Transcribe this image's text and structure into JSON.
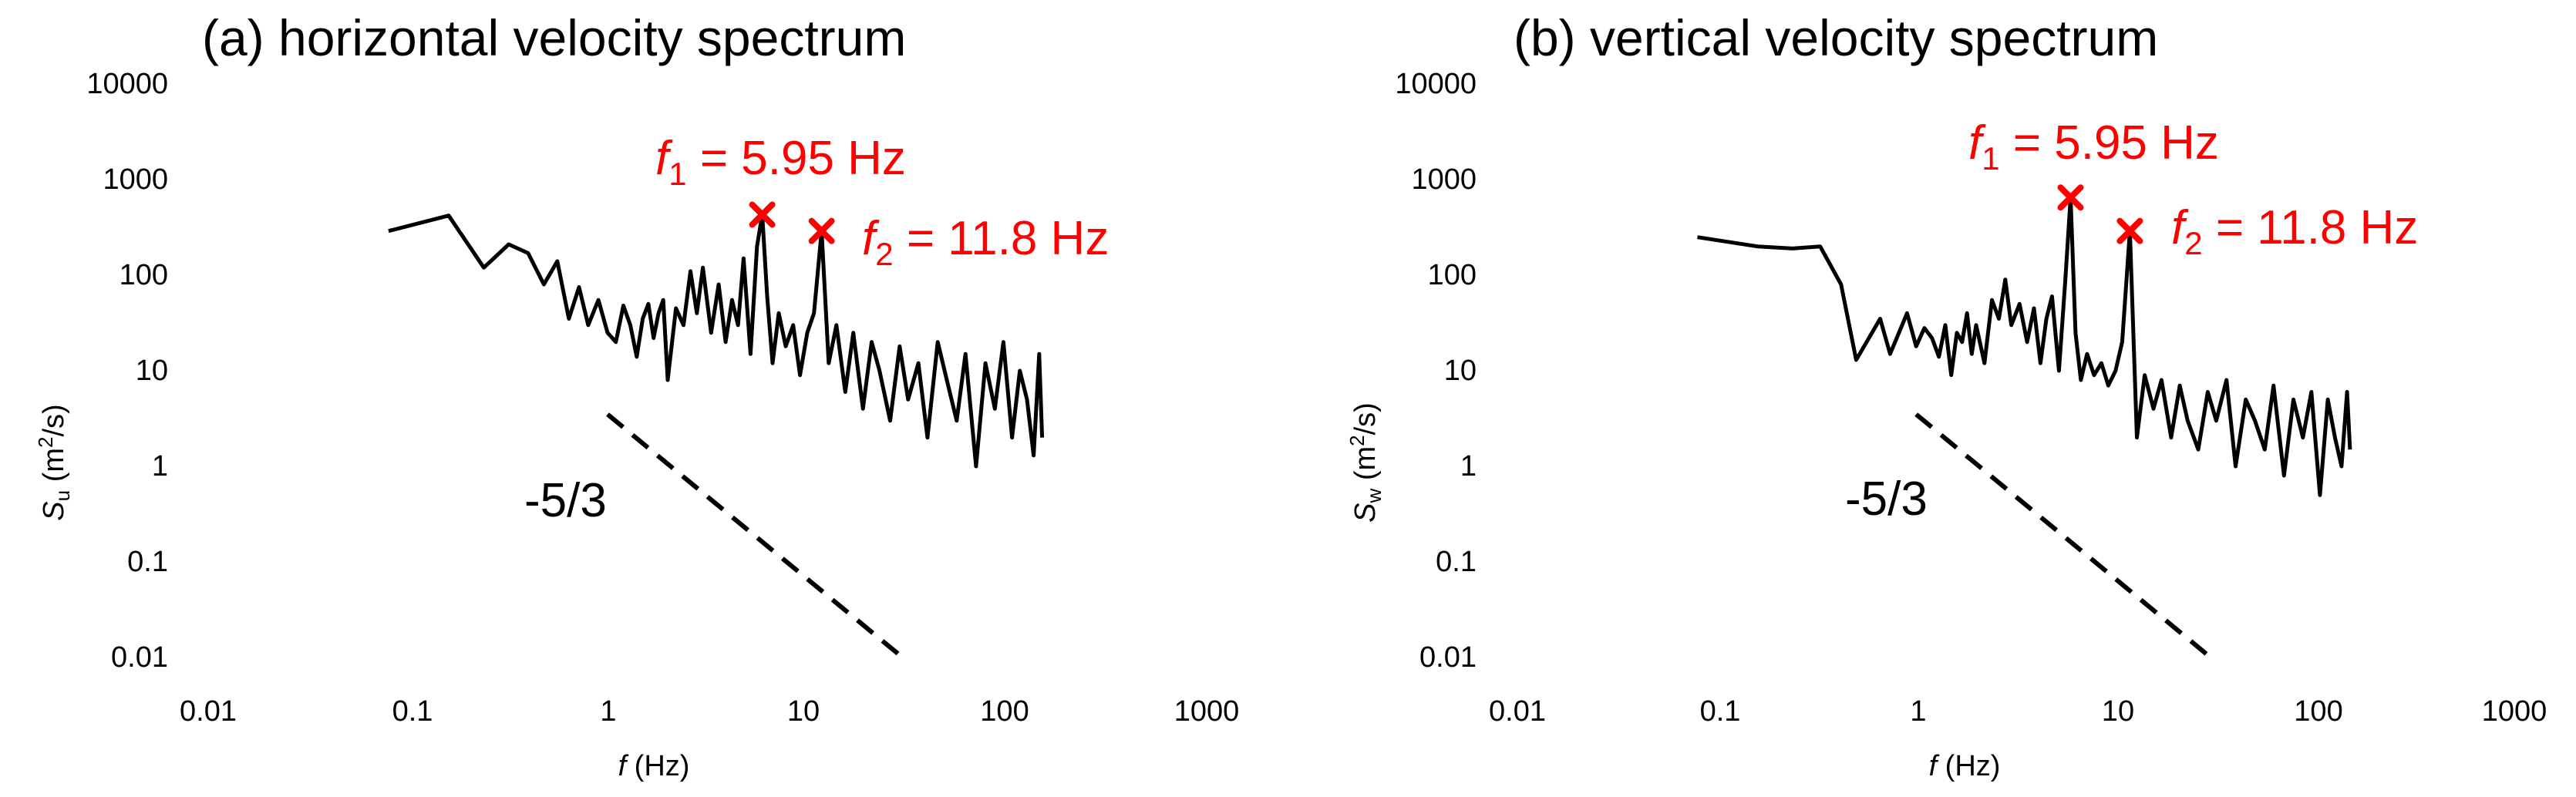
{
  "chart_data": [
    {
      "type": "line",
      "title": "(a) horizontal velocity spectrum",
      "xlabel": "f (Hz)",
      "ylabel": "Su (m2/s)",
      "x_scale": "log",
      "y_scale": "log",
      "xlim": [
        0.01,
        1000
      ],
      "ylim": [
        0.01,
        10000
      ],
      "x_ticks": [
        "0.01",
        "0.1",
        "1",
        "10",
        "100",
        "1000"
      ],
      "y_ticks": [
        "0.01",
        "0.1",
        "1",
        "10",
        "100",
        "1000",
        "10000"
      ],
      "grid": false,
      "colors": {
        "series": "#000000",
        "annotation": "#ff0000"
      },
      "series": [
        {
          "style": "solid",
          "x": [
            0.08,
            0.16,
            0.24,
            0.32,
            0.4,
            0.48,
            0.56,
            0.64,
            0.72,
            0.8,
            0.9,
            1.0,
            1.1,
            1.2,
            1.3,
            1.4,
            1.5,
            1.6,
            1.7,
            1.8,
            1.9,
            2.0,
            2.2,
            2.4,
            2.6,
            2.8,
            3.0,
            3.3,
            3.6,
            3.9,
            4.2,
            4.5,
            4.8,
            5.2,
            5.6,
            5.95,
            6.3,
            6.7,
            7.2,
            7.8,
            8.5,
            9.2,
            10.0,
            10.8,
            11.8,
            12.8,
            14.0,
            15.5,
            17,
            19,
            21,
            23,
            26,
            29,
            32,
            36,
            40,
            45,
            50,
            56,
            62,
            70,
            78,
            87,
            96,
            106,
            116,
            126,
            136,
            145,
            150
          ],
          "y": [
            290,
            420,
            120,
            210,
            170,
            80,
            140,
            35,
            75,
            30,
            55,
            25,
            20,
            48,
            30,
            14,
            35,
            50,
            22,
            40,
            55,
            8,
            45,
            30,
            110,
            40,
            120,
            25,
            80,
            20,
            55,
            30,
            150,
            15,
            200,
            430,
            60,
            12,
            40,
            18,
            30,
            9,
            25,
            40,
            290,
            12,
            30,
            6,
            25,
            4,
            20,
            10,
            3,
            18,
            5,
            12,
            2,
            20,
            8,
            3,
            15,
            1,
            12,
            4,
            20,
            2,
            10,
            5,
            1.3,
            15,
            2
          ]
        },
        {
          "style": "dashed",
          "x": [
            1,
            30
          ],
          "y": [
            3.5,
            0.01
          ]
        }
      ],
      "markers": [
        {
          "x": 5.95,
          "y": 430,
          "symbol": "x"
        },
        {
          "x": 11.8,
          "y": 290,
          "symbol": "x"
        }
      ],
      "annotations": [
        {
          "symbol": "f",
          "subscript": "1",
          "text": " = 5.95 Hz"
        },
        {
          "symbol": "f",
          "subscript": "2",
          "text": " = 11.8 Hz"
        },
        {
          "text": "-5/3"
        }
      ]
    },
    {
      "type": "line",
      "title": "(b) vertical velocity spectrum",
      "xlabel": "f (Hz)",
      "ylabel": "Sw (m2/s)",
      "x_scale": "log",
      "y_scale": "log",
      "xlim": [
        0.01,
        1000
      ],
      "ylim": [
        0.01,
        10000
      ],
      "x_ticks": [
        "0.01",
        "0.1",
        "1",
        "10",
        "100",
        "1000"
      ],
      "y_ticks": [
        "0.01",
        "0.1",
        "1",
        "10",
        "100",
        "1000",
        "10000"
      ],
      "grid": false,
      "colors": {
        "series": "#000000",
        "annotation": "#ff0000"
      },
      "series": [
        {
          "style": "solid",
          "x": [
            0.08,
            0.16,
            0.24,
            0.33,
            0.42,
            0.5,
            0.58,
            0.66,
            0.74,
            0.82,
            0.9,
            1.0,
            1.1,
            1.2,
            1.3,
            1.4,
            1.5,
            1.6,
            1.7,
            1.8,
            1.9,
            2.0,
            2.2,
            2.4,
            2.6,
            2.8,
            3.0,
            3.3,
            3.6,
            3.9,
            4.2,
            4.5,
            4.8,
            5.2,
            5.6,
            5.95,
            6.3,
            6.7,
            7.2,
            7.8,
            8.5,
            9.2,
            10.0,
            10.8,
            11.8,
            12.8,
            14.0,
            15.5,
            17,
            19,
            21,
            23,
            26,
            29,
            32,
            36,
            40,
            45,
            50,
            56,
            62,
            70,
            78,
            87,
            96,
            106,
            116,
            126,
            136,
            145,
            150
          ],
          "y": [
            250,
            200,
            190,
            200,
            80,
            13,
            22,
            35,
            15,
            25,
            40,
            18,
            28,
            22,
            14,
            30,
            9,
            25,
            20,
            40,
            15,
            30,
            12,
            55,
            35,
            90,
            30,
            50,
            20,
            45,
            12,
            35,
            60,
            10,
            90,
            650,
            25,
            8,
            15,
            9,
            12,
            7,
            10,
            20,
            290,
            2,
            9,
            4,
            8,
            2,
            7,
            3,
            1.5,
            6,
            3,
            8,
            1,
            5,
            3,
            1.5,
            7,
            0.8,
            5,
            2,
            6,
            0.5,
            5,
            2,
            1,
            6,
            1.5
          ]
        },
        {
          "style": "dashed",
          "x": [
            1,
            30
          ],
          "y": [
            3.5,
            0.01
          ]
        }
      ],
      "markers": [
        {
          "x": 5.95,
          "y": 650,
          "symbol": "x"
        },
        {
          "x": 11.8,
          "y": 290,
          "symbol": "x"
        }
      ],
      "annotations": [
        {
          "symbol": "f",
          "subscript": "1",
          "text": " = 5.95 Hz"
        },
        {
          "symbol": "f",
          "subscript": "2",
          "text": " = 11.8 Hz"
        },
        {
          "text": "-5/3"
        }
      ]
    }
  ]
}
